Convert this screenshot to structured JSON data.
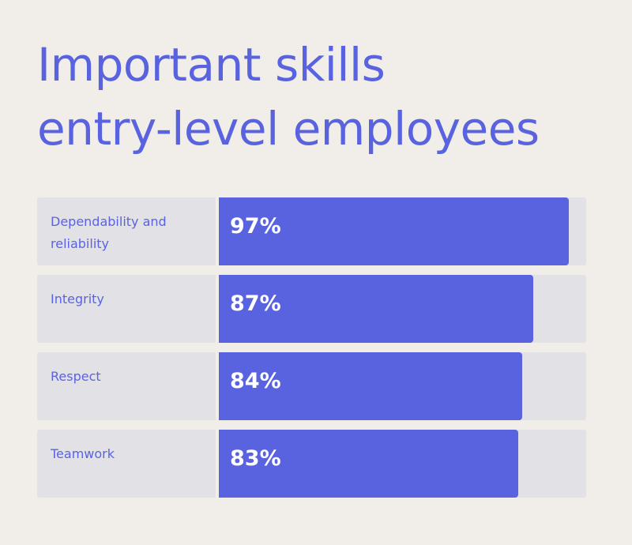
{
  "title": {
    "line1": "Important skills",
    "line2": "entry-level employees"
  },
  "colors": {
    "background": "#f1eeea",
    "accent": "#5a63df",
    "track": "#e2e1e6",
    "value_text": "#ffffff"
  },
  "chart_data": {
    "type": "bar",
    "orientation": "horizontal",
    "title": "Important skills entry-level employees",
    "categories": [
      "Dependability and reliability",
      "Integrity",
      "Respect",
      "Teamwork"
    ],
    "values": [
      97,
      87,
      84,
      83
    ],
    "value_labels": [
      "97%",
      "87%",
      "84%",
      "83%"
    ],
    "unit": "%",
    "xlim": [
      0,
      100
    ],
    "grid": false,
    "legend": "none"
  }
}
